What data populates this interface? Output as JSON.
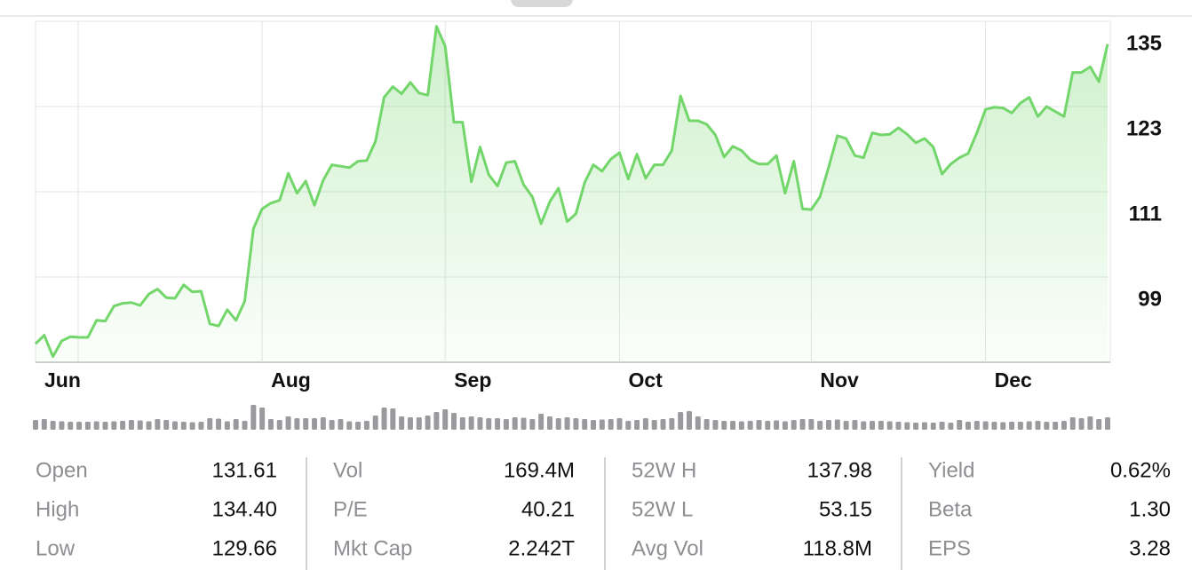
{
  "chart_data": {
    "type": "line",
    "categories": [
      "Jun",
      null,
      null,
      null,
      null,
      null,
      null,
      null,
      null,
      null,
      null,
      null,
      null,
      null,
      null,
      null,
      null,
      null,
      null,
      null,
      null,
      null,
      null,
      null,
      null,
      null,
      "Aug",
      null,
      null,
      null,
      null,
      null,
      null,
      null,
      null,
      null,
      null,
      null,
      null,
      null,
      null,
      null,
      null,
      null,
      null,
      null,
      null,
      "Sep",
      null,
      null,
      null,
      null,
      null,
      null,
      null,
      null,
      null,
      null,
      null,
      null,
      null,
      null,
      null,
      null,
      null,
      null,
      null,
      "Oct",
      null,
      null,
      null,
      null,
      null,
      null,
      null,
      null,
      null,
      null,
      null,
      null,
      null,
      null,
      null,
      null,
      null,
      null,
      null,
      null,
      null,
      "Nov",
      null,
      null,
      null,
      null,
      null,
      null,
      null,
      null,
      null,
      null,
      null,
      null,
      null,
      null,
      null,
      null,
      null,
      null,
      null,
      "Dec",
      null,
      null,
      null,
      null,
      null,
      null,
      null,
      null,
      null,
      null,
      null,
      null,
      null,
      null
    ],
    "values": [
      89.6,
      90.8,
      87.8,
      90.0,
      90.6,
      90.5,
      90.5,
      92.9,
      92.8,
      94.9,
      95.3,
      95.4,
      95.0,
      96.6,
      97.3,
      96.1,
      96.0,
      97.9,
      96.9,
      97.0,
      92.4,
      92.1,
      94.4,
      92.9,
      95.6,
      105.8,
      108.6,
      109.4,
      109.8,
      113.6,
      110.8,
      112.5,
      109.1,
      112.6,
      114.8,
      114.6,
      114.4,
      115.3,
      115.4,
      118.1,
      124.3,
      125.8,
      124.8,
      126.4,
      124.9,
      124.6,
      134.3,
      131.5,
      120.8,
      120.8,
      112.4,
      117.3,
      113.4,
      111.8,
      115.1,
      115.3,
      112.0,
      110.3,
      106.5,
      109.6,
      111.5,
      106.8,
      107.9,
      112.3,
      114.8,
      113.9,
      115.6,
      116.5,
      112.8,
      116.3,
      112.9,
      114.8,
      114.8,
      116.8,
      124.5,
      121.0,
      121.0,
      120.5,
      119.0,
      115.9,
      117.4,
      116.8,
      115.5,
      114.9,
      114.9,
      116.1,
      110.8,
      115.3,
      108.6,
      108.5,
      110.3,
      114.5,
      118.9,
      118.5,
      116.1,
      115.8,
      119.3,
      119.0,
      119.1,
      120.0,
      119.1,
      117.9,
      118.5,
      117.3,
      113.5,
      114.9,
      115.8,
      116.4,
      119.3,
      122.6,
      122.9,
      122.8,
      122.1,
      123.5,
      124.3,
      121.6,
      123.0,
      122.3,
      121.6,
      127.8,
      127.8,
      128.6,
      126.5,
      131.8
    ],
    "color": "#72d66a",
    "ylim": [
      87,
      135
    ],
    "yticks": [
      99,
      111,
      123,
      135
    ],
    "grid": true,
    "volume": [
      110,
      120,
      100,
      95,
      90,
      90,
      90,
      95,
      90,
      95,
      100,
      110,
      105,
      95,
      120,
      110,
      95,
      90,
      85,
      90,
      130,
      125,
      95,
      120,
      100,
      280,
      250,
      120,
      110,
      150,
      130,
      130,
      130,
      140,
      110,
      120,
      95,
      90,
      100,
      160,
      250,
      240,
      150,
      140,
      140,
      160,
      200,
      230,
      190,
      140,
      150,
      140,
      130,
      130,
      120,
      140,
      135,
      120,
      180,
      150,
      130,
      140,
      130,
      120,
      110,
      115,
      120,
      130,
      100,
      110,
      130,
      110,
      120,
      130,
      200,
      210,
      150,
      120,
      110,
      100,
      100,
      95,
      100,
      110,
      100,
      105,
      95,
      110,
      120,
      120,
      100,
      110,
      115,
      100,
      110,
      95,
      100,
      100,
      95,
      90,
      85,
      80,
      85,
      80,
      90,
      80,
      110,
      90,
      100,
      95,
      90,
      85,
      90,
      90,
      95,
      100,
      90,
      90,
      100,
      140,
      130,
      150,
      120,
      140
    ],
    "volume_color": "#9a9a9e"
  },
  "stats": [
    [
      {
        "label": "Open",
        "value": "131.61"
      },
      {
        "label": "High",
        "value": "134.40"
      },
      {
        "label": "Low",
        "value": "129.66"
      }
    ],
    [
      {
        "label": "Vol",
        "value": "169.4M"
      },
      {
        "label": "P/E",
        "value": "40.21"
      },
      {
        "label": "Mkt Cap",
        "value": "2.242T"
      }
    ],
    [
      {
        "label": "52W H",
        "value": "137.98"
      },
      {
        "label": "52W L",
        "value": "53.15"
      },
      {
        "label": "Avg Vol",
        "value": "118.8M"
      }
    ],
    [
      {
        "label": "Yield",
        "value": "0.62%"
      },
      {
        "label": "Beta",
        "value": "1.30"
      },
      {
        "label": "EPS",
        "value": "3.28"
      }
    ]
  ]
}
